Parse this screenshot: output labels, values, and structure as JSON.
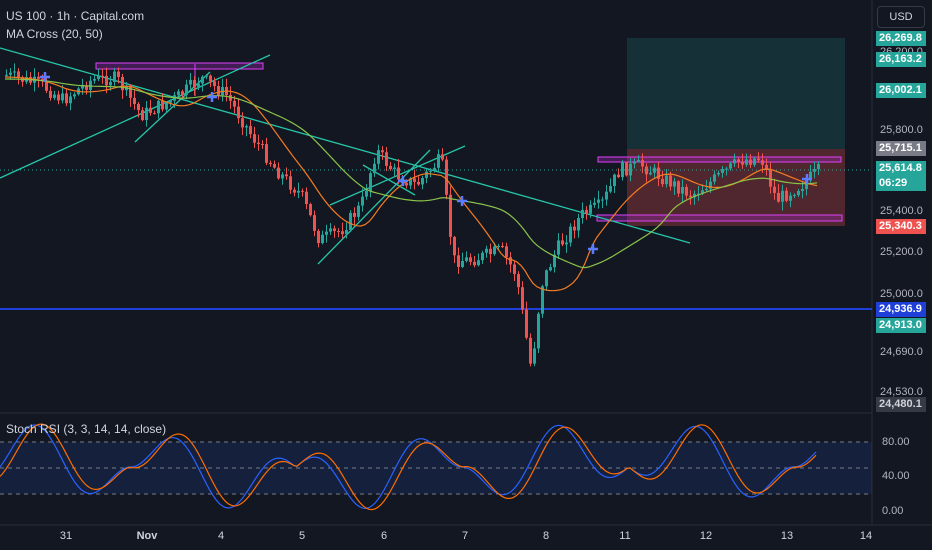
{
  "header": {
    "symbol_label": "US 100 · 1h · Capital.com",
    "indicator_label": "MA Cross (20, 50)",
    "currency": "USD"
  },
  "oscillator": {
    "label": "Stoch RSI (3, 3, 14, 14, close)",
    "ticks": [
      "80.00",
      "40.00",
      "0.00"
    ]
  },
  "price_axis": {
    "ticks": [
      "26,200.0",
      "25,800.0",
      "25,400.0",
      "25,200.0",
      "25,000.0",
      "24,690.0",
      "24,530.0"
    ],
    "tags": [
      {
        "name": "price-tag-target-top",
        "text": "26,269.8",
        "color": "#26a69a"
      },
      {
        "name": "price-tag-target-level",
        "text": "26,163.2",
        "color": "#26a69a"
      },
      {
        "name": "price-tag-take-profit",
        "text": "26,002.1",
        "color": "#26a69a"
      },
      {
        "name": "price-tag-entry",
        "text": "25,715.1",
        "color": "#787b86"
      },
      {
        "name": "price-tag-current",
        "text": "25,614.8",
        "color": "#26a69a"
      },
      {
        "name": "price-tag-countdown",
        "text": "06:29",
        "color": "#26a69a"
      },
      {
        "name": "price-tag-stop-loss",
        "text": "25,340.3",
        "color": "#ef5350"
      },
      {
        "name": "price-tag-support-line",
        "text": "24,936.9",
        "color": "#1e3fd8"
      },
      {
        "name": "price-tag-support-level",
        "text": "24,913.0",
        "color": "#26a69a"
      },
      {
        "name": "price-tag-axis-low",
        "text": "24,480.1",
        "color": "#363a45"
      }
    ]
  },
  "time_axis": {
    "labels": [
      "31",
      "Nov",
      "4",
      "5",
      "6",
      "7",
      "8",
      "11",
      "12",
      "13",
      "14"
    ]
  },
  "colors": {
    "background": "#131722",
    "up": "#26a69a",
    "down": "#ef5350",
    "ma_fast": "#f57c20",
    "ma_slow": "#8bc34a",
    "trendline": "#26c6a8",
    "support_line": "#1e3fd8",
    "stoch_k": "#2962ff",
    "stoch_d": "#ff6d00"
  }
}
